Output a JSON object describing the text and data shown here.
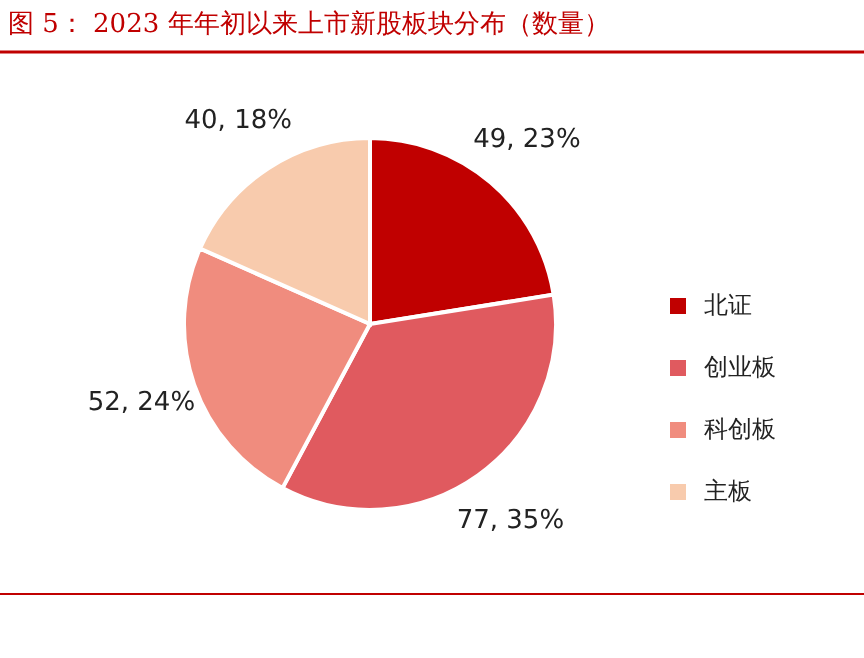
{
  "chart_data": {
    "type": "pie",
    "title": "图 5：   2023 年年初以来上市新股板块分布（数量）",
    "categories": [
      "北证",
      "创业板",
      "科创板",
      "主板"
    ],
    "values": [
      49,
      77,
      52,
      40
    ],
    "value_labels": [
      "49, 23%",
      "77, 35%",
      "52, 24%",
      "40, 18%"
    ],
    "colors": [
      "#c00000",
      "#e05a5f",
      "#f08c7e",
      "#f8cbad"
    ],
    "legend": "right"
  }
}
